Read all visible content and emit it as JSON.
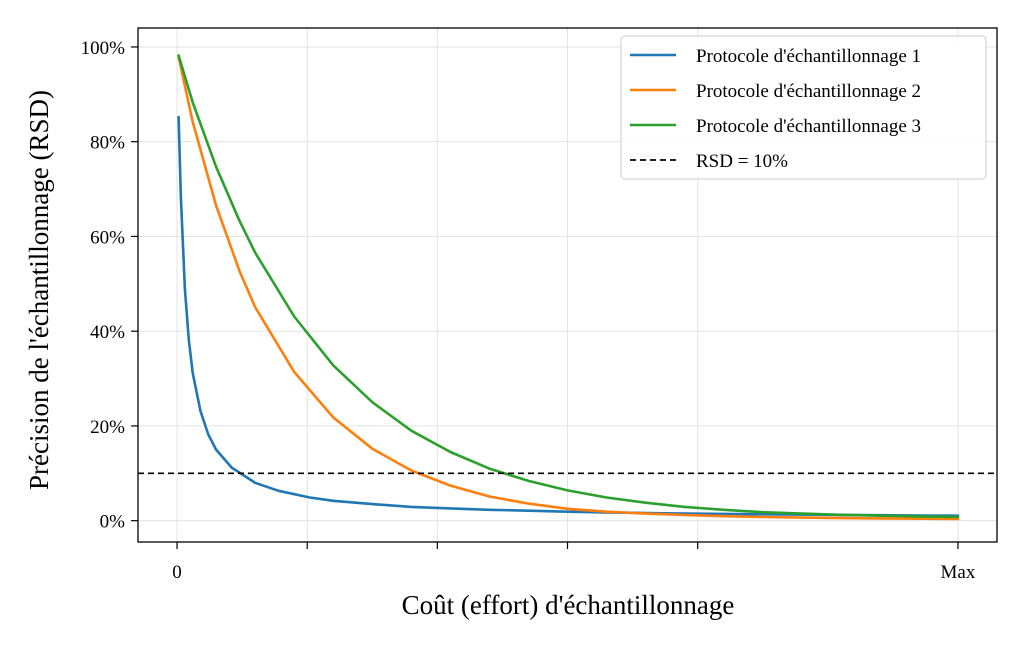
{
  "chart_data": {
    "type": "line",
    "title": "",
    "xlabel": "Coût (effort) d'échantillonnage",
    "ylabel": "Précision de l'échantillonnage (RSD)",
    "xlim": [
      -0.05,
      1.05
    ],
    "ylim": [
      -0.045,
      1.04
    ],
    "x_ticks": [
      {
        "value": 0,
        "label": "0"
      },
      {
        "value": 0.1667,
        "label": ""
      },
      {
        "value": 0.3333,
        "label": ""
      },
      {
        "value": 0.5,
        "label": ""
      },
      {
        "value": 0.6667,
        "label": ""
      },
      {
        "value": 1.0,
        "label": "Max"
      }
    ],
    "y_ticks": [
      {
        "value": 0.0,
        "label": "0%"
      },
      {
        "value": 0.2,
        "label": "20%"
      },
      {
        "value": 0.4,
        "label": "40%"
      },
      {
        "value": 0.6,
        "label": "60%"
      },
      {
        "value": 0.8,
        "label": "80%"
      },
      {
        "value": 1.0,
        "label": "100%"
      }
    ],
    "grid": true,
    "legend_position": "top-right",
    "series": [
      {
        "name": "Protocole d'échantillonnage 1",
        "color": "#1f77b4",
        "x": [
          0.002,
          0.005,
          0.01,
          0.015,
          0.02,
          0.03,
          0.04,
          0.05,
          0.07,
          0.1,
          0.13,
          0.17,
          0.2,
          0.25,
          0.3,
          0.35,
          0.4,
          0.45,
          0.5,
          0.55,
          0.6,
          0.65,
          0.7,
          0.75,
          0.8,
          0.85,
          0.9,
          0.95,
          1.0
        ],
        "y": [
          0.852,
          0.681,
          0.489,
          0.382,
          0.312,
          0.231,
          0.182,
          0.15,
          0.112,
          0.08,
          0.063,
          0.049,
          0.042,
          0.035,
          0.029,
          0.026,
          0.023,
          0.021,
          0.019,
          0.0175,
          0.0163,
          0.0152,
          0.0143,
          0.0135,
          0.0128,
          0.0121,
          0.0115,
          0.011,
          0.0105
        ]
      },
      {
        "name": "Protocole d'échantillonnage 2",
        "color": "#ff7f0e",
        "x": [
          0.002,
          0.02,
          0.05,
          0.08,
          0.1,
          0.15,
          0.2,
          0.25,
          0.3,
          0.35,
          0.4,
          0.45,
          0.5,
          0.55,
          0.6,
          0.65,
          0.7,
          0.75,
          0.8,
          0.85,
          0.9,
          0.95,
          1.0
        ],
        "y": [
          0.979,
          0.842,
          0.665,
          0.527,
          0.451,
          0.314,
          0.218,
          0.152,
          0.106,
          0.074,
          0.051,
          0.036,
          0.025,
          0.019,
          0.015,
          0.012,
          0.0095,
          0.0078,
          0.0065,
          0.0055,
          0.0048,
          0.0042,
          0.0038
        ]
      },
      {
        "name": "Protocole d'échantillonnage 3",
        "color": "#2ca02c",
        "x": [
          0.002,
          0.02,
          0.05,
          0.08,
          0.1,
          0.15,
          0.2,
          0.25,
          0.3,
          0.35,
          0.4,
          0.45,
          0.5,
          0.55,
          0.6,
          0.65,
          0.7,
          0.75,
          0.8,
          0.85,
          0.9,
          0.95,
          1.0
        ],
        "y": [
          0.982,
          0.883,
          0.747,
          0.633,
          0.566,
          0.431,
          0.328,
          0.25,
          0.19,
          0.145,
          0.11,
          0.084,
          0.064,
          0.049,
          0.038,
          0.029,
          0.023,
          0.018,
          0.015,
          0.0125,
          0.0105,
          0.009,
          0.008
        ]
      },
      {
        "name": "RSD = 10%",
        "color": "#000000",
        "dashed": true,
        "x": [
          -0.05,
          1.05
        ],
        "y": [
          0.1,
          0.1
        ]
      }
    ]
  }
}
